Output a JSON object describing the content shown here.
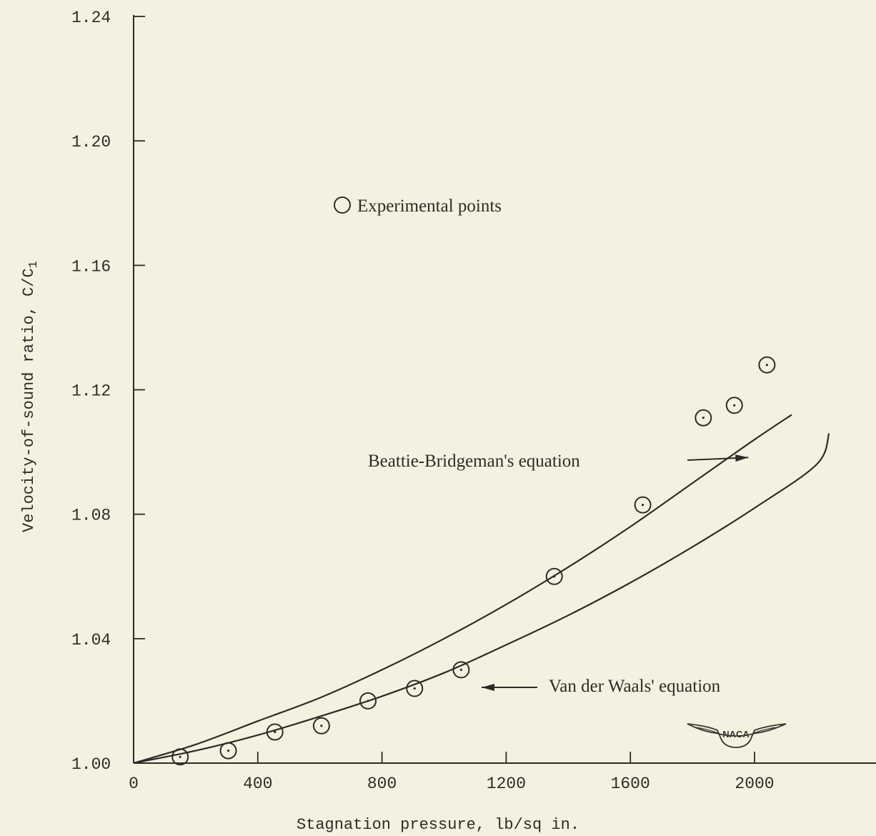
{
  "chart_data": {
    "type": "scatter",
    "xlabel": "Stagnation pressure, lb/sq in.",
    "ylabel": "Velocity-of-sound ratio, C/C",
    "ylabel_subscript": "1",
    "xlim": [
      0,
      2400
    ],
    "ylim": [
      1.0,
      1.24
    ],
    "x_ticks": [
      {
        "value": 0,
        "label": "0"
      },
      {
        "value": 400,
        "label": "400"
      },
      {
        "value": 800,
        "label": "800"
      },
      {
        "value": 1200,
        "label": "1200"
      },
      {
        "value": 1600,
        "label": "1600"
      },
      {
        "value": 2000,
        "label": "2000"
      }
    ],
    "y_ticks": [
      {
        "value": 1.0,
        "label": "1.00"
      },
      {
        "value": 1.04,
        "label": "1.04"
      },
      {
        "value": 1.08,
        "label": "1.08"
      },
      {
        "value": 1.12,
        "label": "1.12"
      },
      {
        "value": 1.16,
        "label": "1.16"
      },
      {
        "value": 1.2,
        "label": "1.20"
      },
      {
        "value": 1.24,
        "label": "1.24"
      }
    ],
    "grid": false,
    "legend": {
      "position": "top-left",
      "label": "Experimental points",
      "marker": "open-circle"
    },
    "series": [
      {
        "name": "Experimental points",
        "kind": "points",
        "points": [
          [
            150,
            1.002
          ],
          [
            305,
            1.004
          ],
          [
            455,
            1.01
          ],
          [
            605,
            1.012
          ],
          [
            755,
            1.02
          ],
          [
            905,
            1.024
          ],
          [
            1055,
            1.03
          ],
          [
            1355,
            1.06
          ],
          [
            1640,
            1.083
          ],
          [
            1835,
            1.111
          ],
          [
            1935,
            1.115
          ],
          [
            2040,
            1.128
          ]
        ]
      },
      {
        "name": "Beattie-Bridgeman's equation",
        "kind": "curve",
        "points": [
          [
            0,
            1.0
          ],
          [
            200,
            1.006
          ],
          [
            400,
            1.0135
          ],
          [
            600,
            1.021
          ],
          [
            800,
            1.03
          ],
          [
            1000,
            1.04
          ],
          [
            1200,
            1.051
          ],
          [
            1400,
            1.063
          ],
          [
            1600,
            1.076
          ],
          [
            1800,
            1.09
          ],
          [
            2000,
            1.104
          ],
          [
            2120,
            1.112
          ]
        ]
      },
      {
        "name": "Van der Waals' equation",
        "kind": "curve",
        "points": [
          [
            0,
            1.0
          ],
          [
            200,
            1.004
          ],
          [
            400,
            1.009
          ],
          [
            600,
            1.015
          ],
          [
            800,
            1.0215
          ],
          [
            1000,
            1.029
          ],
          [
            1200,
            1.038
          ],
          [
            1400,
            1.0475
          ],
          [
            1600,
            1.058
          ],
          [
            1800,
            1.0695
          ],
          [
            2000,
            1.082
          ],
          [
            2200,
            1.096
          ],
          [
            2240,
            1.106
          ]
        ]
      }
    ],
    "annotations": [
      {
        "text": "Beattie-Bridgeman's equation",
        "x": 390,
        "y": 1.099,
        "arrow_to": [
          1980,
          1.098
        ]
      },
      {
        "text": "Van der Waals' equation",
        "x": 1360,
        "y": 1.025,
        "arrow_to": [
          1120,
          1.025
        ]
      }
    ],
    "logo": "NACA"
  }
}
